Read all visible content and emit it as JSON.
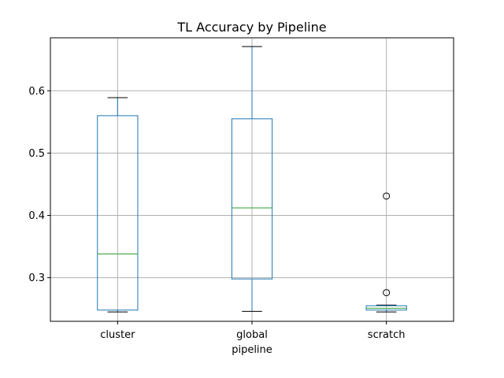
{
  "chart_data": {
    "type": "box",
    "title": "TL Accuracy by Pipeline",
    "xlabel": "pipeline",
    "ylabel": "",
    "ylim": [
      0.23,
      0.685
    ],
    "yticks": [
      0.3,
      0.4,
      0.5,
      0.6
    ],
    "ytick_labels": [
      "0.3",
      "0.4",
      "0.5",
      "0.6"
    ],
    "grid": true,
    "categories": [
      "cluster",
      "global",
      "scratch"
    ],
    "boxes": [
      {
        "category": "cluster",
        "whisker_low": 0.245,
        "q1": 0.248,
        "median": 0.338,
        "q3": 0.56,
        "whisker_high": 0.589,
        "outliers": []
      },
      {
        "category": "global",
        "whisker_low": 0.246,
        "q1": 0.298,
        "median": 0.412,
        "q3": 0.555,
        "whisker_high": 0.671,
        "outliers": []
      },
      {
        "category": "scratch",
        "whisker_low": 0.245,
        "q1": 0.248,
        "median": 0.251,
        "q3": 0.255,
        "whisker_high": 0.256,
        "outliers": [
          0.276,
          0.431
        ]
      }
    ],
    "colors": {
      "box": "#1f77b4",
      "median": "#2ca02c",
      "grid": "#b0b0b0",
      "axis": "#000000"
    }
  }
}
